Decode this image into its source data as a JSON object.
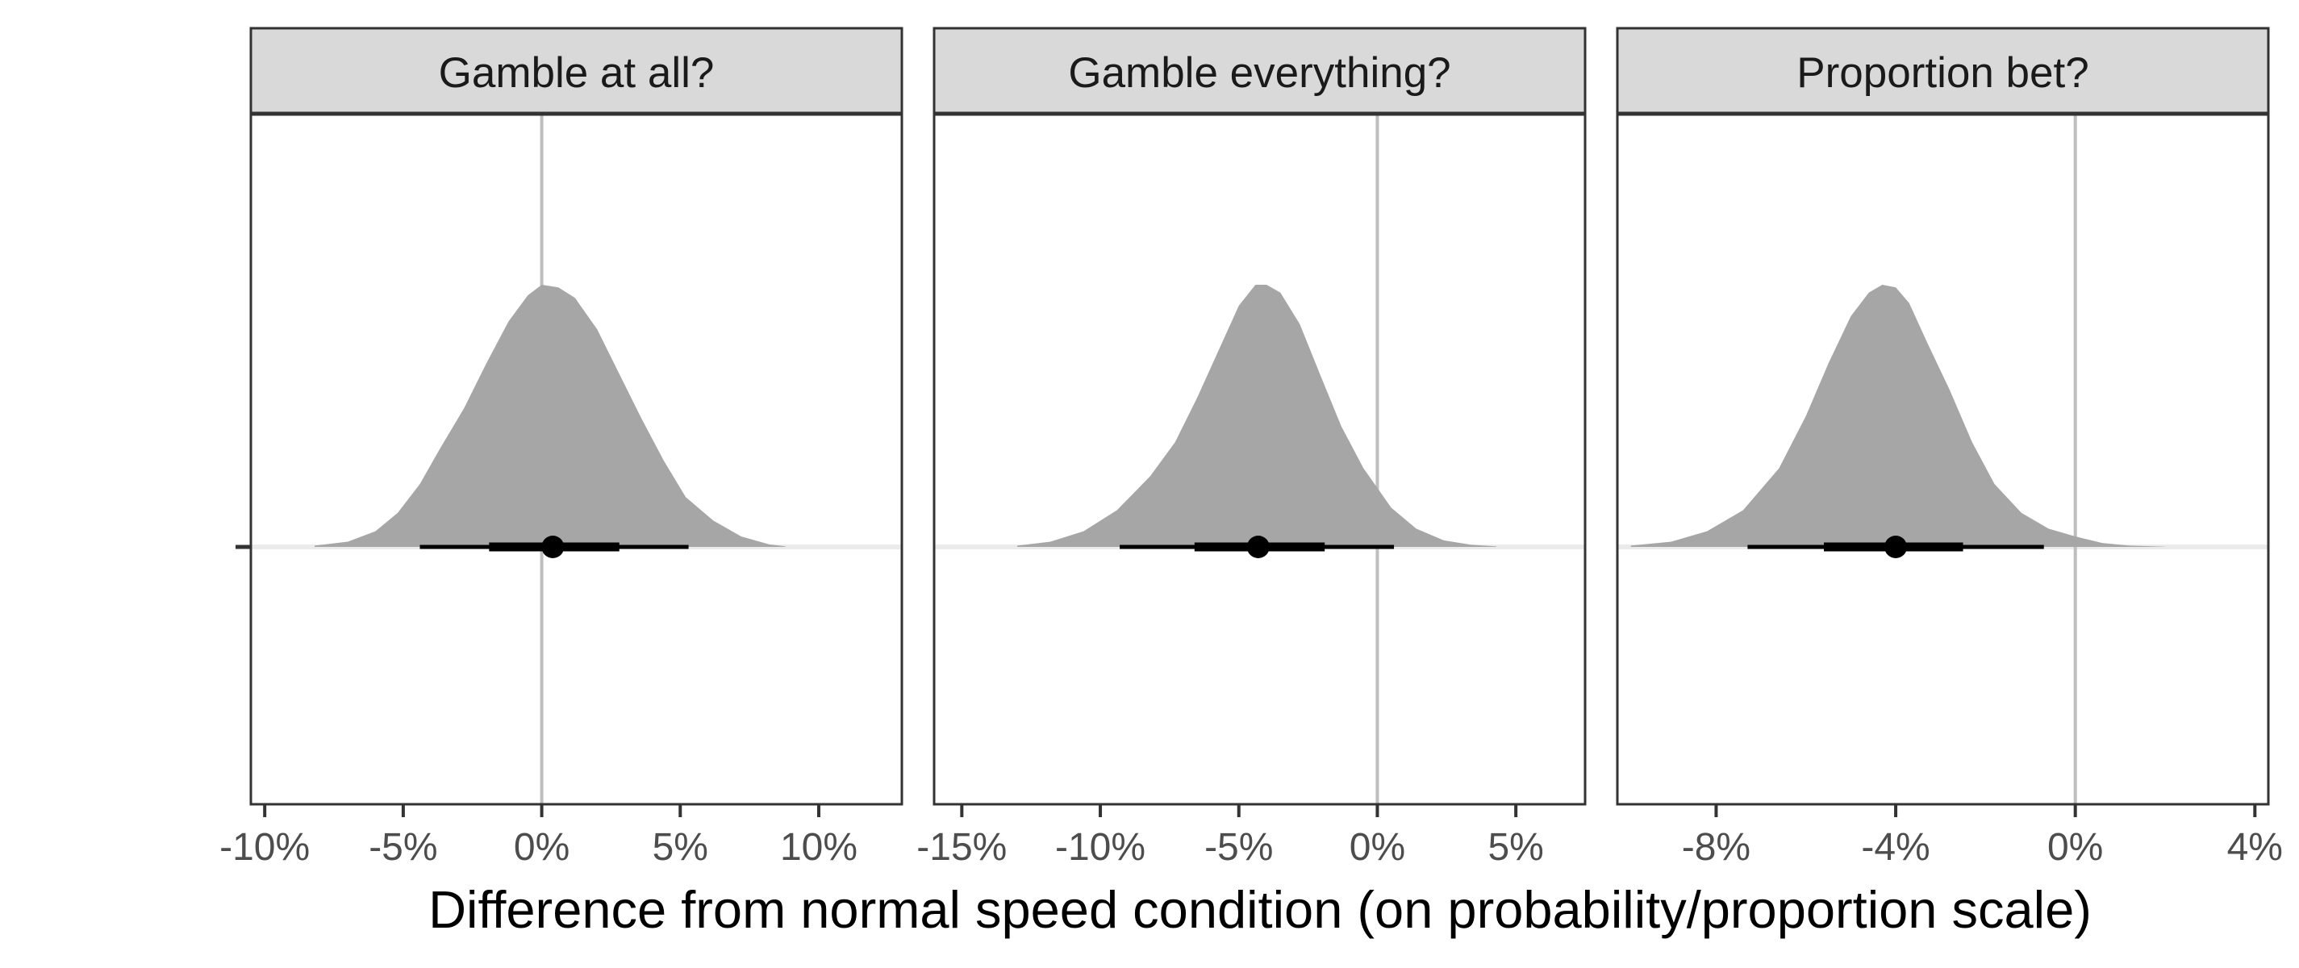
{
  "chart_data": {
    "type": "area",
    "xlabel": "Difference from normal speed condition (on probability/proportion scale)",
    "ylabel": "",
    "grid": false,
    "legend": "none",
    "colors": {
      "density_fill": "#a6a6a6",
      "interval": "#000000",
      "reference_line": "#bebebe",
      "baseline": "#ebebeb",
      "strip_background": "#d9d9d9",
      "panel_border": "#333333"
    },
    "panels": [
      {
        "title": "Gamble at all?",
        "xlim": [
          -10.5,
          13
        ],
        "xticks": [
          -10,
          -5,
          0,
          5,
          10
        ],
        "xtick_labels": [
          "-10%",
          "-5%",
          "0%",
          "5%",
          "10%"
        ],
        "reference": 0,
        "density": {
          "x": [
            -8.2,
            -7,
            -6,
            -5.2,
            -4.4,
            -3.7,
            -2.8,
            -2,
            -1.2,
            -0.5,
            0,
            0.6,
            1.2,
            2,
            2.8,
            3.6,
            4.4,
            5.2,
            6.2,
            7.2,
            8.2,
            8.8
          ],
          "y": [
            0.005,
            0.02,
            0.06,
            0.13,
            0.24,
            0.37,
            0.53,
            0.7,
            0.86,
            0.96,
            1.0,
            0.99,
            0.95,
            0.83,
            0.66,
            0.49,
            0.33,
            0.19,
            0.1,
            0.04,
            0.01,
            0.002
          ]
        },
        "point": 0.4,
        "interval_inner": [
          -1.9,
          2.8
        ],
        "interval_outer": [
          -4.4,
          5.3
        ]
      },
      {
        "title": "Gamble everything?",
        "xlim": [
          -16,
          7.5
        ],
        "xticks": [
          -15,
          -10,
          -5,
          0,
          5
        ],
        "xtick_labels": [
          "-15%",
          "-10%",
          "-5%",
          "0%",
          "5%"
        ],
        "reference": 0,
        "density": {
          "x": [
            -13,
            -11.8,
            -10.6,
            -9.4,
            -8.2,
            -7.3,
            -6.5,
            -5.6,
            -5,
            -4.4,
            -4,
            -3.5,
            -2.8,
            -2,
            -1.3,
            -0.5,
            0.5,
            1.4,
            2.4,
            3.4,
            4.3
          ],
          "y": [
            0.005,
            0.02,
            0.06,
            0.14,
            0.27,
            0.4,
            0.57,
            0.78,
            0.92,
            1.0,
            1.0,
            0.97,
            0.85,
            0.64,
            0.46,
            0.3,
            0.15,
            0.07,
            0.025,
            0.008,
            0.002
          ]
        },
        "point": -4.3,
        "interval_inner": [
          -6.6,
          -1.9
        ],
        "interval_outer": [
          -9.3,
          0.6
        ]
      },
      {
        "title": "Proportion bet?",
        "xlim": [
          -10.2,
          4.3
        ],
        "xticks": [
          -8,
          -4,
          0,
          4
        ],
        "xtick_labels": [
          "-8%",
          "-4%",
          "0%",
          "4%"
        ],
        "reference": 0,
        "density": {
          "x": [
            -9.9,
            -9,
            -8.2,
            -7.4,
            -6.6,
            -6,
            -5.5,
            -5,
            -4.6,
            -4.3,
            -4,
            -3.7,
            -3.3,
            -2.8,
            -2.3,
            -1.8,
            -1.2,
            -0.6,
            0,
            0.6,
            1.2,
            2
          ],
          "y": [
            0.005,
            0.02,
            0.06,
            0.14,
            0.3,
            0.5,
            0.7,
            0.88,
            0.97,
            1.0,
            0.99,
            0.93,
            0.78,
            0.6,
            0.4,
            0.24,
            0.13,
            0.07,
            0.04,
            0.015,
            0.005,
            0.001
          ]
        },
        "point": -4.0,
        "interval_inner": [
          -5.6,
          -2.5
        ],
        "interval_outer": [
          -7.3,
          -0.7
        ]
      }
    ]
  }
}
